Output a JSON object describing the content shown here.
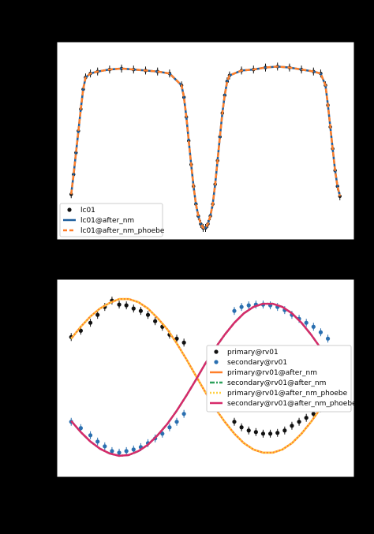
{
  "colors": {
    "background": "#000000",
    "axes_face": "#ffffff",
    "data_points": "#111111",
    "secondary_points": "#2a6fb0",
    "model_nm": "#1f5f9e",
    "model_nm_phoebe": "#ff7f2a",
    "orange": "#ff7f2a",
    "green": "#2ca05a",
    "yellow": "#ffcf40",
    "magenta": "#d62a6a"
  },
  "chart_data": [
    {
      "type": "line",
      "subplot": "top",
      "title": "",
      "xlabel": "",
      "ylabel": "",
      "xlim": [
        -0.12,
        1.12
      ],
      "ylim": [
        0.12,
        1.12
      ],
      "grid": false,
      "legend_position": "lower-left",
      "series": [
        {
          "name": "lc01",
          "kind": "scatter-errorbar",
          "color": "#111111",
          "x": [
            -0.06,
            -0.05,
            -0.04,
            -0.03,
            -0.02,
            -0.01,
            0.0,
            0.02,
            0.05,
            0.1,
            0.15,
            0.2,
            0.25,
            0.3,
            0.35,
            0.4,
            0.41,
            0.42,
            0.43,
            0.44,
            0.45,
            0.46,
            0.47,
            0.48,
            0.49,
            0.5,
            0.51,
            0.52,
            0.53,
            0.54,
            0.55,
            0.56,
            0.57,
            0.58,
            0.59,
            0.6,
            0.65,
            0.7,
            0.75,
            0.8,
            0.85,
            0.9,
            0.95,
            0.98,
            1.0,
            1.01,
            1.02,
            1.03,
            1.04,
            1.05,
            1.06
          ],
          "y": [
            0.35,
            0.45,
            0.56,
            0.67,
            0.78,
            0.88,
            0.94,
            0.96,
            0.97,
            0.98,
            0.985,
            0.98,
            0.975,
            0.97,
            0.96,
            0.9,
            0.84,
            0.74,
            0.62,
            0.5,
            0.39,
            0.3,
            0.24,
            0.2,
            0.18,
            0.18,
            0.2,
            0.24,
            0.3,
            0.4,
            0.52,
            0.64,
            0.76,
            0.85,
            0.92,
            0.95,
            0.975,
            0.98,
            0.99,
            0.995,
            0.99,
            0.98,
            0.97,
            0.96,
            0.9,
            0.8,
            0.69,
            0.58,
            0.47,
            0.39,
            0.34
          ]
        },
        {
          "name": "lc01@after_nm",
          "kind": "line",
          "color": "#1f5f9e",
          "x": [
            -0.06,
            -0.05,
            -0.04,
            -0.03,
            -0.02,
            -0.01,
            0.0,
            0.02,
            0.05,
            0.1,
            0.15,
            0.2,
            0.25,
            0.3,
            0.35,
            0.4,
            0.41,
            0.42,
            0.43,
            0.44,
            0.45,
            0.46,
            0.47,
            0.48,
            0.49,
            0.5,
            0.51,
            0.52,
            0.53,
            0.54,
            0.55,
            0.56,
            0.57,
            0.58,
            0.59,
            0.6,
            0.65,
            0.7,
            0.75,
            0.8,
            0.85,
            0.9,
            0.95,
            0.98,
            1.0,
            1.01,
            1.02,
            1.03,
            1.04,
            1.05,
            1.06
          ],
          "y": [
            0.35,
            0.45,
            0.56,
            0.67,
            0.78,
            0.88,
            0.94,
            0.96,
            0.97,
            0.98,
            0.985,
            0.98,
            0.975,
            0.97,
            0.96,
            0.9,
            0.84,
            0.74,
            0.62,
            0.5,
            0.39,
            0.3,
            0.24,
            0.2,
            0.18,
            0.18,
            0.2,
            0.24,
            0.3,
            0.4,
            0.52,
            0.64,
            0.76,
            0.85,
            0.92,
            0.95,
            0.975,
            0.98,
            0.99,
            0.995,
            0.99,
            0.98,
            0.97,
            0.96,
            0.9,
            0.8,
            0.69,
            0.58,
            0.47,
            0.39,
            0.34
          ]
        },
        {
          "name": "lc01@after_nm_phoebe",
          "kind": "dashed-line",
          "color": "#ff7f2a",
          "x": [
            -0.06,
            -0.05,
            -0.04,
            -0.03,
            -0.02,
            -0.01,
            0.0,
            0.02,
            0.05,
            0.1,
            0.15,
            0.2,
            0.25,
            0.3,
            0.35,
            0.4,
            0.41,
            0.42,
            0.43,
            0.44,
            0.45,
            0.46,
            0.47,
            0.48,
            0.49,
            0.5,
            0.51,
            0.52,
            0.53,
            0.54,
            0.55,
            0.56,
            0.57,
            0.58,
            0.59,
            0.6,
            0.65,
            0.7,
            0.75,
            0.8,
            0.85,
            0.9,
            0.95,
            0.98,
            1.0,
            1.01,
            1.02,
            1.03,
            1.04,
            1.05,
            1.06
          ],
          "y": [
            0.35,
            0.45,
            0.56,
            0.67,
            0.78,
            0.88,
            0.94,
            0.96,
            0.97,
            0.98,
            0.985,
            0.98,
            0.975,
            0.97,
            0.96,
            0.9,
            0.84,
            0.74,
            0.62,
            0.5,
            0.39,
            0.3,
            0.24,
            0.2,
            0.18,
            0.18,
            0.2,
            0.24,
            0.3,
            0.4,
            0.52,
            0.64,
            0.76,
            0.85,
            0.92,
            0.95,
            0.975,
            0.98,
            0.99,
            0.995,
            0.99,
            0.98,
            0.97,
            0.96,
            0.9,
            0.8,
            0.69,
            0.58,
            0.47,
            0.39,
            0.34
          ]
        }
      ],
      "legend": [
        "lc01",
        "lc01@after_nm",
        "lc01@after_nm_phoebe"
      ]
    },
    {
      "type": "line",
      "subplot": "bottom",
      "title": "",
      "xlabel": "",
      "ylabel": "",
      "xlim": [
        -0.12,
        1.12
      ],
      "ylim": [
        -1.25,
        1.25
      ],
      "grid": false,
      "legend_position": "right",
      "series": [
        {
          "name": "primary@rv01",
          "kind": "scatter-errorbar",
          "color": "#111111",
          "x": [
            -0.06,
            -0.02,
            0.02,
            0.05,
            0.08,
            0.11,
            0.14,
            0.17,
            0.2,
            0.23,
            0.26,
            0.29,
            0.32,
            0.35,
            0.38,
            0.41,
            0.62,
            0.65,
            0.68,
            0.71,
            0.74,
            0.77,
            0.8,
            0.83,
            0.86,
            0.89,
            0.92,
            0.95,
            0.98,
            1.01
          ],
          "y": [
            0.52,
            0.6,
            0.7,
            0.8,
            0.9,
            0.98,
            0.93,
            0.92,
            0.88,
            0.85,
            0.8,
            0.72,
            0.65,
            0.55,
            0.5,
            0.45,
            -0.55,
            -0.62,
            -0.66,
            -0.68,
            -0.7,
            -0.7,
            -0.69,
            -0.66,
            -0.6,
            -0.55,
            -0.5,
            -0.45,
            -0.38,
            -0.35
          ]
        },
        {
          "name": "secondary@rv01",
          "kind": "scatter-errorbar",
          "color": "#2a6fb0",
          "x": [
            -0.06,
            -0.02,
            0.02,
            0.05,
            0.08,
            0.11,
            0.14,
            0.17,
            0.2,
            0.23,
            0.26,
            0.29,
            0.32,
            0.35,
            0.38,
            0.41,
            0.62,
            0.65,
            0.68,
            0.71,
            0.74,
            0.77,
            0.8,
            0.83,
            0.86,
            0.89,
            0.92,
            0.95,
            0.98,
            1.01
          ],
          "y": [
            -0.55,
            -0.63,
            -0.72,
            -0.8,
            -0.86,
            -0.92,
            -0.94,
            -0.92,
            -0.9,
            -0.87,
            -0.82,
            -0.76,
            -0.7,
            -0.62,
            -0.55,
            -0.45,
            0.85,
            0.9,
            0.92,
            0.93,
            0.93,
            0.92,
            0.9,
            0.86,
            0.8,
            0.75,
            0.7,
            0.65,
            0.58,
            0.5
          ]
        },
        {
          "name": "primary@rv01@after_nm",
          "kind": "line",
          "color": "#ff7f2a",
          "x": [
            -0.06,
            -0.02,
            0.02,
            0.06,
            0.1,
            0.14,
            0.18,
            0.22,
            0.26,
            0.3,
            0.34,
            0.38,
            0.42,
            0.46,
            0.5,
            0.54,
            0.58,
            0.62,
            0.66,
            0.7,
            0.74,
            0.78,
            0.82,
            0.86,
            0.9,
            0.94,
            0.98,
            1.02,
            1.06
          ],
          "y": [
            0.5,
            0.65,
            0.78,
            0.88,
            0.95,
            1.0,
            1.0,
            0.96,
            0.88,
            0.76,
            0.62,
            0.44,
            0.24,
            0.03,
            -0.18,
            -0.38,
            -0.55,
            -0.7,
            -0.82,
            -0.9,
            -0.94,
            -0.94,
            -0.9,
            -0.82,
            -0.7,
            -0.55,
            -0.38,
            -0.18,
            0.03
          ]
        },
        {
          "name": "secondary@rv01@after_nm",
          "kind": "dashdot-line",
          "color": "#2ca05a",
          "x": [
            -0.06,
            -0.02,
            0.02,
            0.06,
            0.1,
            0.14,
            0.18,
            0.22,
            0.26,
            0.3,
            0.34,
            0.38,
            0.42,
            0.46,
            0.5,
            0.54,
            0.58,
            0.62,
            0.66,
            0.7,
            0.74,
            0.78,
            0.82,
            0.86,
            0.9,
            0.94,
            0.98,
            1.02,
            1.06
          ],
          "y": [
            -0.54,
            -0.68,
            -0.8,
            -0.89,
            -0.95,
            -0.98,
            -0.97,
            -0.92,
            -0.84,
            -0.72,
            -0.58,
            -0.41,
            -0.22,
            -0.02,
            0.19,
            0.38,
            0.55,
            0.7,
            0.82,
            0.9,
            0.94,
            0.94,
            0.9,
            0.82,
            0.7,
            0.55,
            0.38,
            0.19,
            -0.02
          ]
        },
        {
          "name": "primary@rv01@after_nm_phoebe",
          "kind": "dotted-line",
          "color": "#ffcf40",
          "x": [
            -0.06,
            -0.02,
            0.02,
            0.06,
            0.1,
            0.14,
            0.18,
            0.22,
            0.26,
            0.3,
            0.34,
            0.38,
            0.42,
            0.46,
            0.5,
            0.54,
            0.58,
            0.62,
            0.66,
            0.7,
            0.74,
            0.78,
            0.82,
            0.86,
            0.9,
            0.94,
            0.98,
            1.02,
            1.06
          ],
          "y": [
            0.5,
            0.65,
            0.78,
            0.88,
            0.95,
            1.0,
            1.0,
            0.96,
            0.88,
            0.76,
            0.62,
            0.44,
            0.24,
            0.03,
            -0.18,
            -0.38,
            -0.55,
            -0.7,
            -0.82,
            -0.9,
            -0.94,
            -0.94,
            -0.9,
            -0.82,
            -0.7,
            -0.55,
            -0.38,
            -0.18,
            0.03
          ]
        },
        {
          "name": "secondary@rv01@after_nm_phoebe",
          "kind": "line",
          "color": "#d62a6a",
          "x": [
            -0.06,
            -0.02,
            0.02,
            0.06,
            0.1,
            0.14,
            0.18,
            0.22,
            0.26,
            0.3,
            0.34,
            0.38,
            0.42,
            0.46,
            0.5,
            0.54,
            0.58,
            0.62,
            0.66,
            0.7,
            0.74,
            0.78,
            0.82,
            0.86,
            0.9,
            0.94,
            0.98,
            1.02,
            1.06
          ],
          "y": [
            -0.54,
            -0.68,
            -0.8,
            -0.89,
            -0.95,
            -0.98,
            -0.97,
            -0.92,
            -0.84,
            -0.72,
            -0.58,
            -0.41,
            -0.22,
            -0.02,
            0.19,
            0.38,
            0.55,
            0.7,
            0.82,
            0.9,
            0.94,
            0.94,
            0.9,
            0.82,
            0.7,
            0.55,
            0.38,
            0.19,
            -0.02
          ]
        }
      ],
      "legend": [
        "primary@rv01",
        "secondary@rv01",
        "primary@rv01@after_nm",
        "secondary@rv01@after_nm",
        "primary@rv01@after_nm_phoebe",
        "secondary@rv01@after_nm_phoebe"
      ]
    }
  ]
}
